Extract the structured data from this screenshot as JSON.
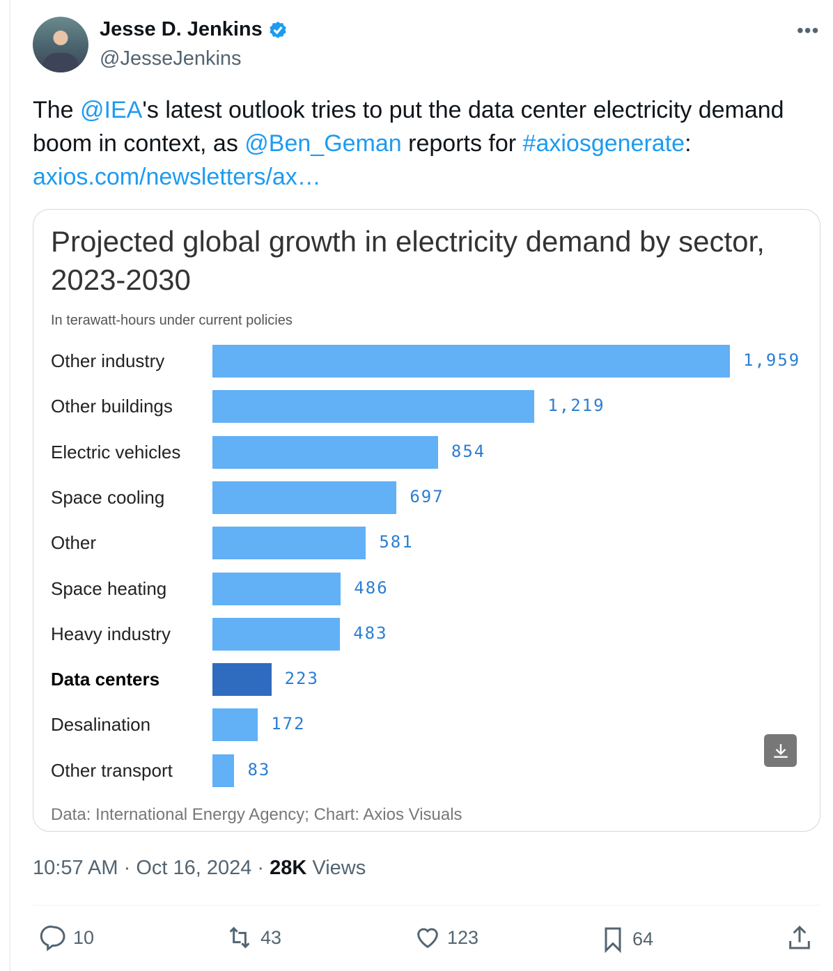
{
  "author": {
    "name": "Jesse D. Jenkins",
    "handle": "@JesseJenkins",
    "verified": true
  },
  "tweet": {
    "t1": "The ",
    "m1": "@IEA",
    "t2": "'s latest outlook tries to put the data center electricity demand boom in context, as ",
    "m2": "@Ben_Geman",
    "t3": " reports for ",
    "h1": "#axiosgenerate",
    "t4": ":",
    "link": "axios.com/newsletters/ax…"
  },
  "chart_data": {
    "type": "bar",
    "orientation": "horizontal",
    "title": "Projected global growth in electricity demand by sector, 2023-2030",
    "subtitle": "In terawatt-hours under current policies",
    "source": "Data: International Energy Agency; Chart: Axios Visuals",
    "categories": [
      "Other industry",
      "Other buildings",
      "Electric vehicles",
      "Space cooling",
      "Other",
      "Space heating",
      "Heavy industry",
      "Data centers",
      "Desalination",
      "Other transport"
    ],
    "values": [
      1959,
      1219,
      854,
      697,
      581,
      486,
      483,
      223,
      172,
      83
    ],
    "value_labels": [
      "1,959",
      "1,219",
      "854",
      "697",
      "581",
      "486",
      "483",
      "223",
      "172",
      "83"
    ],
    "highlight": "Data centers",
    "colors": {
      "bar": "#62b0f6",
      "highlight": "#2f6bbf",
      "label": "#2c7ed1"
    },
    "xlim": [
      0,
      1959
    ]
  },
  "meta": {
    "time": "10:57 AM",
    "date": "Oct 16, 2024",
    "views_count": "28K",
    "views_label": "Views",
    "sep": " · "
  },
  "actions": {
    "replies": "10",
    "reposts": "43",
    "likes": "123",
    "bookmarks": "64"
  }
}
